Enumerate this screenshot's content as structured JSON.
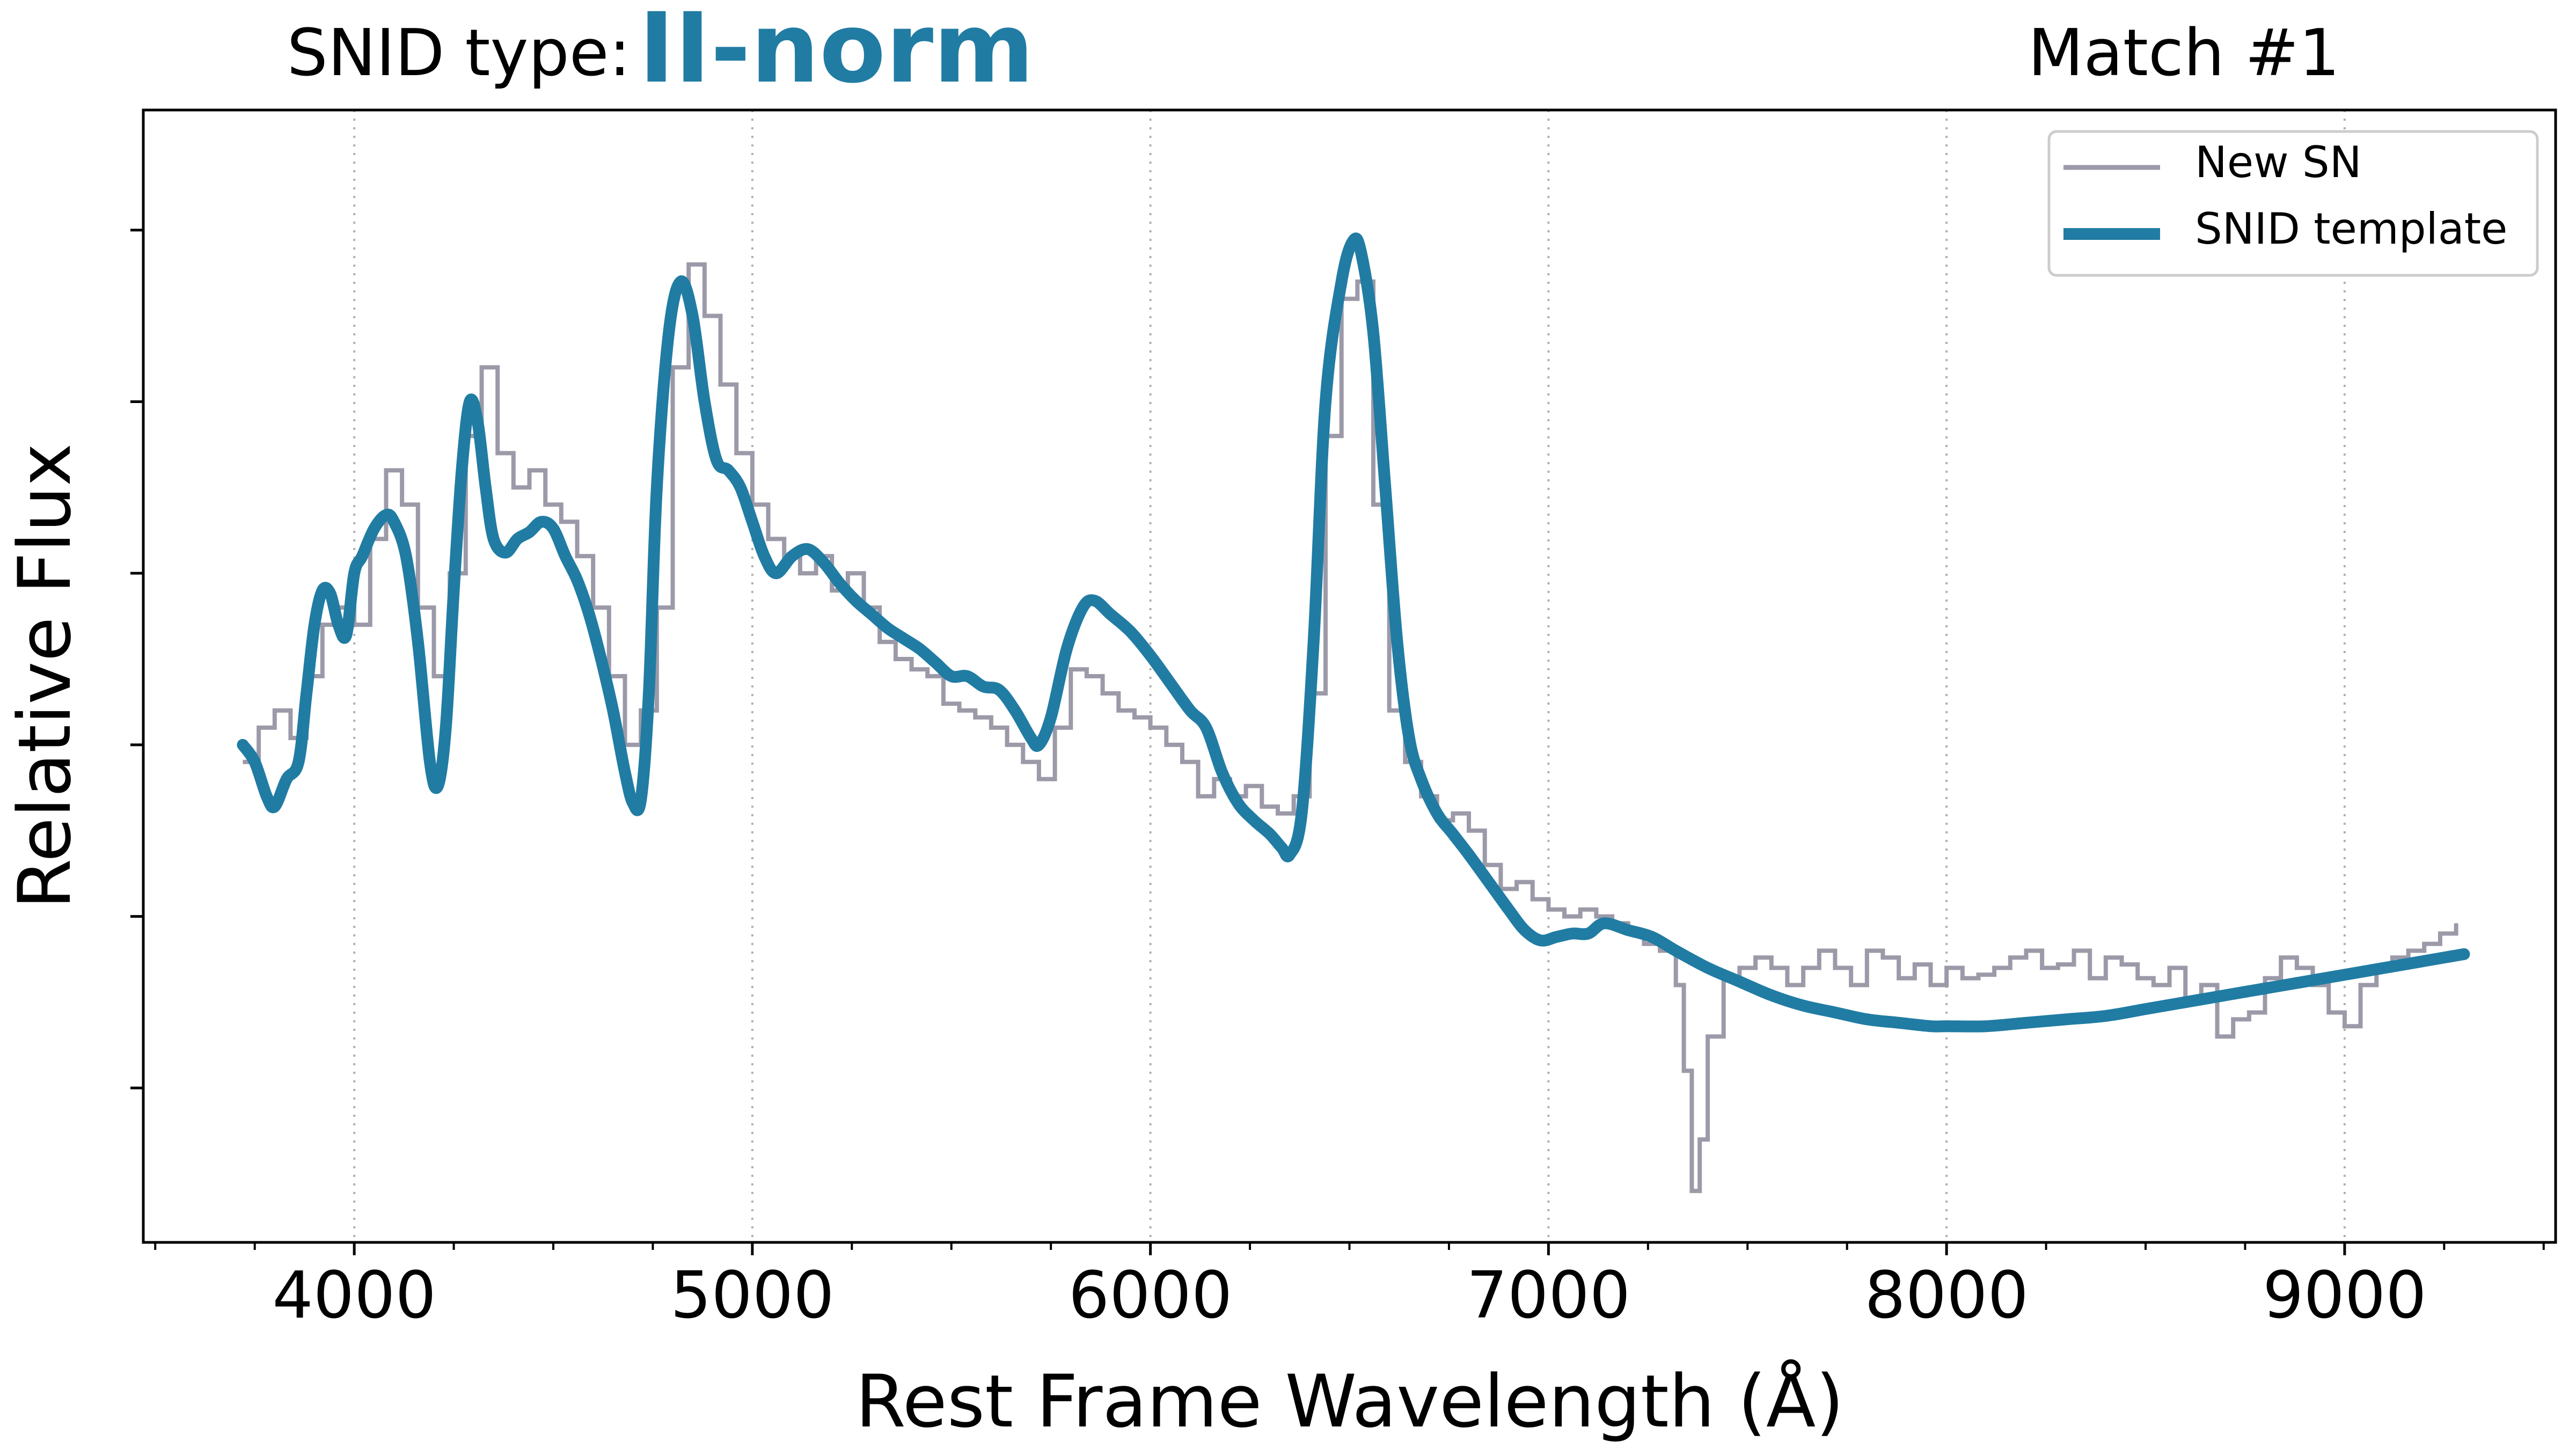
{
  "header": {
    "type_label": "SNID type:",
    "type_value": "II-norm",
    "match_label": "Match #1"
  },
  "colors": {
    "template": "#217ca3",
    "observed": "#9c9aa8",
    "grid": "#b0b0b0",
    "axis": "#000000"
  },
  "chart_data": {
    "type": "line",
    "xlabel": "Rest Frame Wavelength (Å)",
    "ylabel": "Relative Flux",
    "xlim": [
      3470,
      9530
    ],
    "ylim": [
      0.05,
      3.35
    ],
    "x_ticks": [
      4000,
      5000,
      6000,
      7000,
      8000,
      9000
    ],
    "x_tick_labels": [
      "4000",
      "5000",
      "6000",
      "7000",
      "8000",
      "9000"
    ],
    "x_minor_step": 250,
    "y_ticks": [
      0.5,
      1.0,
      1.5,
      2.0,
      2.5,
      3.0
    ],
    "y_tick_labels_shown": false,
    "grid": "x-major dotted",
    "legend": {
      "position": "top-right",
      "entries": [
        "New SN",
        "SNID template"
      ]
    },
    "series": [
      {
        "name": "New SN",
        "style": "steps",
        "x": [
          3720,
          3760,
          3800,
          3840,
          3880,
          3920,
          3960,
          4000,
          4040,
          4080,
          4120,
          4160,
          4200,
          4240,
          4280,
          4320,
          4360,
          4400,
          4440,
          4480,
          4520,
          4560,
          4600,
          4640,
          4680,
          4720,
          4760,
          4800,
          4840,
          4880,
          4920,
          4960,
          5000,
          5040,
          5080,
          5120,
          5160,
          5200,
          5240,
          5280,
          5320,
          5360,
          5400,
          5440,
          5480,
          5520,
          5560,
          5600,
          5640,
          5680,
          5720,
          5760,
          5800,
          5840,
          5880,
          5920,
          5960,
          6000,
          6040,
          6080,
          6120,
          6160,
          6200,
          6240,
          6280,
          6320,
          6360,
          6400,
          6440,
          6480,
          6520,
          6560,
          6600,
          6640,
          6680,
          6720,
          6760,
          6800,
          6840,
          6880,
          6920,
          6960,
          7000,
          7040,
          7080,
          7120,
          7160,
          7200,
          7240,
          7280,
          7320,
          7340,
          7360,
          7380,
          7400,
          7440,
          7480,
          7520,
          7560,
          7600,
          7640,
          7680,
          7720,
          7760,
          7800,
          7840,
          7880,
          7920,
          7960,
          8000,
          8040,
          8080,
          8120,
          8160,
          8200,
          8240,
          8280,
          8320,
          8360,
          8400,
          8440,
          8480,
          8520,
          8560,
          8600,
          8640,
          8680,
          8720,
          8760,
          8800,
          8840,
          8880,
          8920,
          8960,
          9000,
          9040,
          9080,
          9120,
          9160,
          9200,
          9240,
          9280
        ],
        "y": [
          1.45,
          1.55,
          1.6,
          1.52,
          1.7,
          1.85,
          1.9,
          1.85,
          2.1,
          2.3,
          2.2,
          1.9,
          1.7,
          2.0,
          2.4,
          2.6,
          2.35,
          2.25,
          2.3,
          2.2,
          2.15,
          2.05,
          1.9,
          1.7,
          1.5,
          1.6,
          1.9,
          2.6,
          2.9,
          2.75,
          2.55,
          2.35,
          2.2,
          2.1,
          2.05,
          2.0,
          2.05,
          1.95,
          2.0,
          1.9,
          1.8,
          1.75,
          1.72,
          1.7,
          1.62,
          1.6,
          1.58,
          1.55,
          1.5,
          1.45,
          1.4,
          1.55,
          1.72,
          1.7,
          1.65,
          1.6,
          1.58,
          1.55,
          1.5,
          1.45,
          1.35,
          1.4,
          1.35,
          1.38,
          1.32,
          1.3,
          1.35,
          1.65,
          2.4,
          2.8,
          2.85,
          2.2,
          1.6,
          1.45,
          1.35,
          1.28,
          1.3,
          1.25,
          1.15,
          1.08,
          1.1,
          1.05,
          1.02,
          1.0,
          1.02,
          1.0,
          0.98,
          0.95,
          0.92,
          0.9,
          0.8,
          0.55,
          0.2,
          0.35,
          0.65,
          0.82,
          0.85,
          0.88,
          0.85,
          0.8,
          0.85,
          0.9,
          0.85,
          0.8,
          0.9,
          0.88,
          0.82,
          0.86,
          0.8,
          0.85,
          0.82,
          0.83,
          0.85,
          0.88,
          0.9,
          0.85,
          0.86,
          0.9,
          0.82,
          0.88,
          0.86,
          0.82,
          0.8,
          0.85,
          0.75,
          0.8,
          0.65,
          0.7,
          0.72,
          0.82,
          0.88,
          0.85,
          0.8,
          0.72,
          0.68,
          0.8,
          0.85,
          0.88,
          0.9,
          0.92,
          0.95,
          0.98
        ]
      },
      {
        "name": "SNID template",
        "style": "smooth",
        "x": [
          3720,
          3750,
          3780,
          3800,
          3830,
          3860,
          3880,
          3900,
          3920,
          3940,
          3960,
          3980,
          4000,
          4020,
          4050,
          4080,
          4100,
          4130,
          4160,
          4190,
          4210,
          4230,
          4250,
          4270,
          4290,
          4310,
          4330,
          4350,
          4380,
          4410,
          4440,
          4470,
          4500,
          4530,
          4560,
          4590,
          4620,
          4650,
          4680,
          4700,
          4720,
          4740,
          4760,
          4790,
          4820,
          4850,
          4880,
          4910,
          4940,
          4970,
          5000,
          5030,
          5060,
          5100,
          5140,
          5180,
          5220,
          5260,
          5300,
          5340,
          5380,
          5420,
          5460,
          5500,
          5540,
          5580,
          5620,
          5660,
          5700,
          5720,
          5750,
          5790,
          5830,
          5860,
          5900,
          5950,
          6000,
          6050,
          6100,
          6140,
          6180,
          6220,
          6260,
          6300,
          6330,
          6350,
          6380,
          6410,
          6440,
          6480,
          6510,
          6530,
          6560,
          6590,
          6620,
          6650,
          6680,
          6720,
          6760,
          6800,
          6850,
          6900,
          6940,
          6980,
          7020,
          7060,
          7100,
          7140,
          7200,
          7260,
          7320,
          7400,
          7480,
          7560,
          7640,
          7720,
          7800,
          7880,
          7960,
          8000,
          8100,
          8200,
          8300,
          8400,
          8500,
          8600,
          8700,
          8800,
          8900,
          9000,
          9100,
          9200,
          9300
        ],
        "y": [
          1.5,
          1.45,
          1.35,
          1.32,
          1.4,
          1.45,
          1.65,
          1.85,
          1.95,
          1.94,
          1.85,
          1.82,
          2.0,
          2.05,
          2.13,
          2.17,
          2.15,
          2.05,
          1.8,
          1.45,
          1.38,
          1.55,
          1.95,
          2.3,
          2.5,
          2.44,
          2.25,
          2.1,
          2.06,
          2.1,
          2.12,
          2.15,
          2.13,
          2.05,
          1.98,
          1.88,
          1.75,
          1.6,
          1.42,
          1.33,
          1.34,
          1.65,
          2.25,
          2.7,
          2.85,
          2.75,
          2.5,
          2.33,
          2.3,
          2.25,
          2.15,
          2.05,
          2.0,
          2.05,
          2.07,
          2.03,
          1.97,
          1.92,
          1.88,
          1.84,
          1.81,
          1.78,
          1.74,
          1.7,
          1.7,
          1.67,
          1.66,
          1.6,
          1.52,
          1.5,
          1.58,
          1.78,
          1.9,
          1.92,
          1.88,
          1.83,
          1.76,
          1.68,
          1.6,
          1.55,
          1.42,
          1.33,
          1.28,
          1.24,
          1.2,
          1.18,
          1.3,
          1.8,
          2.5,
          2.85,
          2.97,
          2.93,
          2.7,
          2.25,
          1.8,
          1.52,
          1.4,
          1.3,
          1.24,
          1.18,
          1.1,
          1.02,
          0.96,
          0.93,
          0.94,
          0.95,
          0.95,
          0.98,
          0.96,
          0.94,
          0.9,
          0.85,
          0.81,
          0.77,
          0.74,
          0.72,
          0.7,
          0.69,
          0.68,
          0.68,
          0.68,
          0.69,
          0.7,
          0.71,
          0.73,
          0.75,
          0.77,
          0.79,
          0.81,
          0.83,
          0.85,
          0.87,
          0.89
        ]
      }
    ]
  }
}
